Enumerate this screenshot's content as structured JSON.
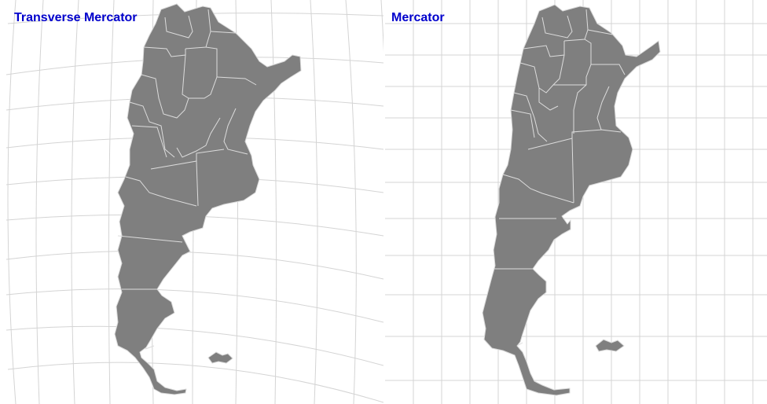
{
  "panels": [
    {
      "title": "Transverse Mercator",
      "projection": "transverse-mercator"
    },
    {
      "title": "Mercator",
      "projection": "mercator"
    }
  ],
  "colors": {
    "land": "#7f7f7f",
    "borders": "#dcdcdc",
    "graticule": "#d4d4d4",
    "title": "#0000cc",
    "background": "#ffffff"
  }
}
